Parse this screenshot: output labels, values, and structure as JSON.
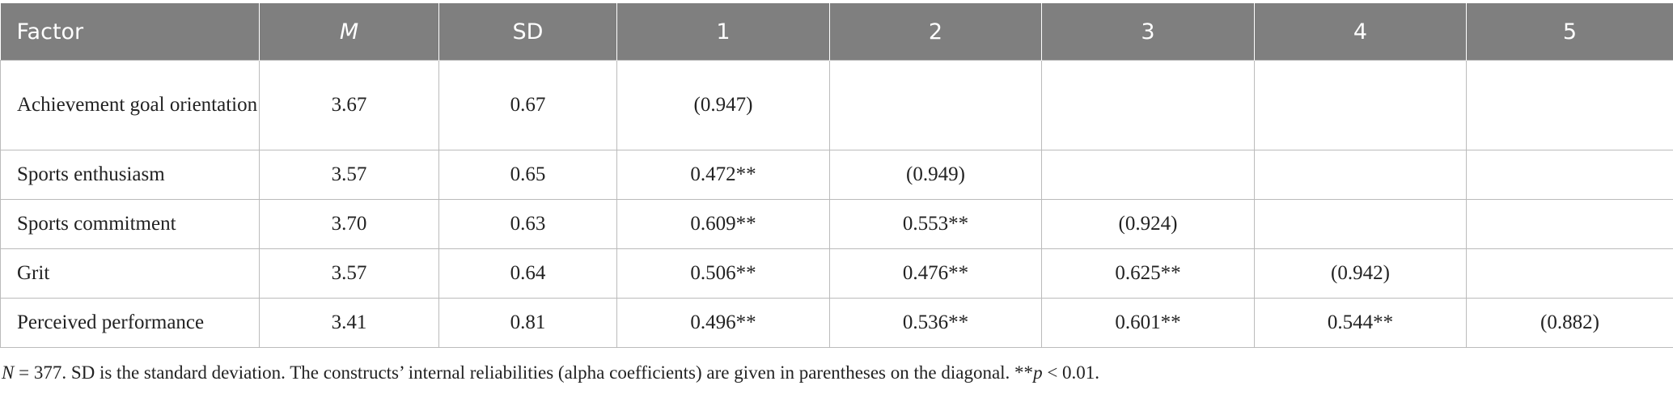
{
  "table": {
    "header": [
      "Factor",
      "M",
      "SD",
      "1",
      "2",
      "3",
      "4",
      "5"
    ],
    "rows": [
      [
        "Achievement goal orientation",
        "3.67",
        "0.67",
        "(0.947)",
        null,
        null,
        null,
        null
      ],
      [
        "Sports enthusiasm",
        "3.57",
        "0.65",
        "0.472**",
        "(0.949)",
        null,
        null,
        null
      ],
      [
        "Sports commitment",
        "3.70",
        "0.63",
        "0.609**",
        "0.553**",
        "(0.924)",
        null,
        null
      ],
      [
        "Grit",
        "3.57",
        "0.64",
        "0.506**",
        "0.476**",
        "0.625**",
        "(0.942)",
        null
      ],
      [
        "Perceived performance",
        "3.41",
        "0.81",
        "0.496**",
        "0.536**",
        "0.601**",
        "0.544**",
        "(0.882)"
      ]
    ]
  },
  "footnote": [
    "N",
    " = 377. SD is the standard deviation. The constructs’ internal reliabilities (alpha coefficients) are given in parentheses on the diagonal. **",
    "p",
    " < 0.01."
  ]
}
